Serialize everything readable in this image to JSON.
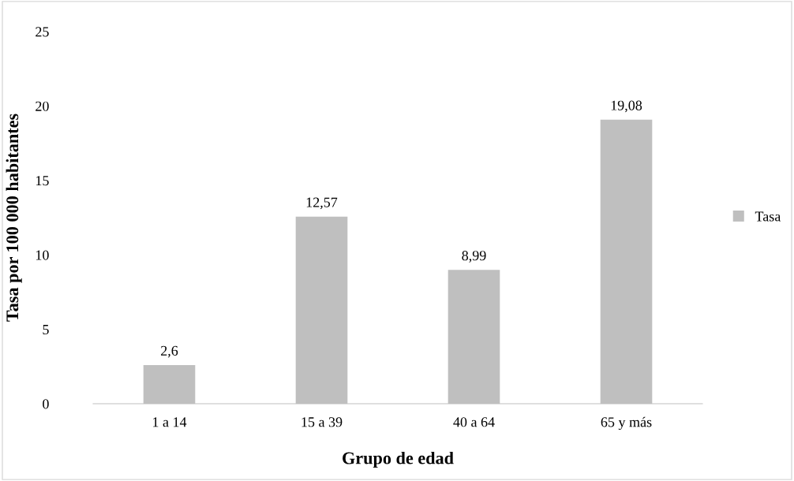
{
  "chart_data": {
    "type": "bar",
    "xlabel": "Grupo de edad",
    "ylabel": "Tasa por 100 000 habitantes",
    "categories": [
      "1 a 14",
      "15 a 39",
      "40 a 64",
      "65 y más"
    ],
    "series": [
      {
        "name": "Tasa",
        "color": "#bfbfbf",
        "values": [
          2.6,
          12.57,
          8.99,
          19.08
        ],
        "value_labels": [
          "2,6",
          "12,57",
          "8,99",
          "19,08"
        ]
      }
    ],
    "ylim": [
      0,
      25
    ],
    "yticks": [
      0,
      5,
      10,
      15,
      20,
      25
    ],
    "grid": false,
    "legend": "right"
  }
}
